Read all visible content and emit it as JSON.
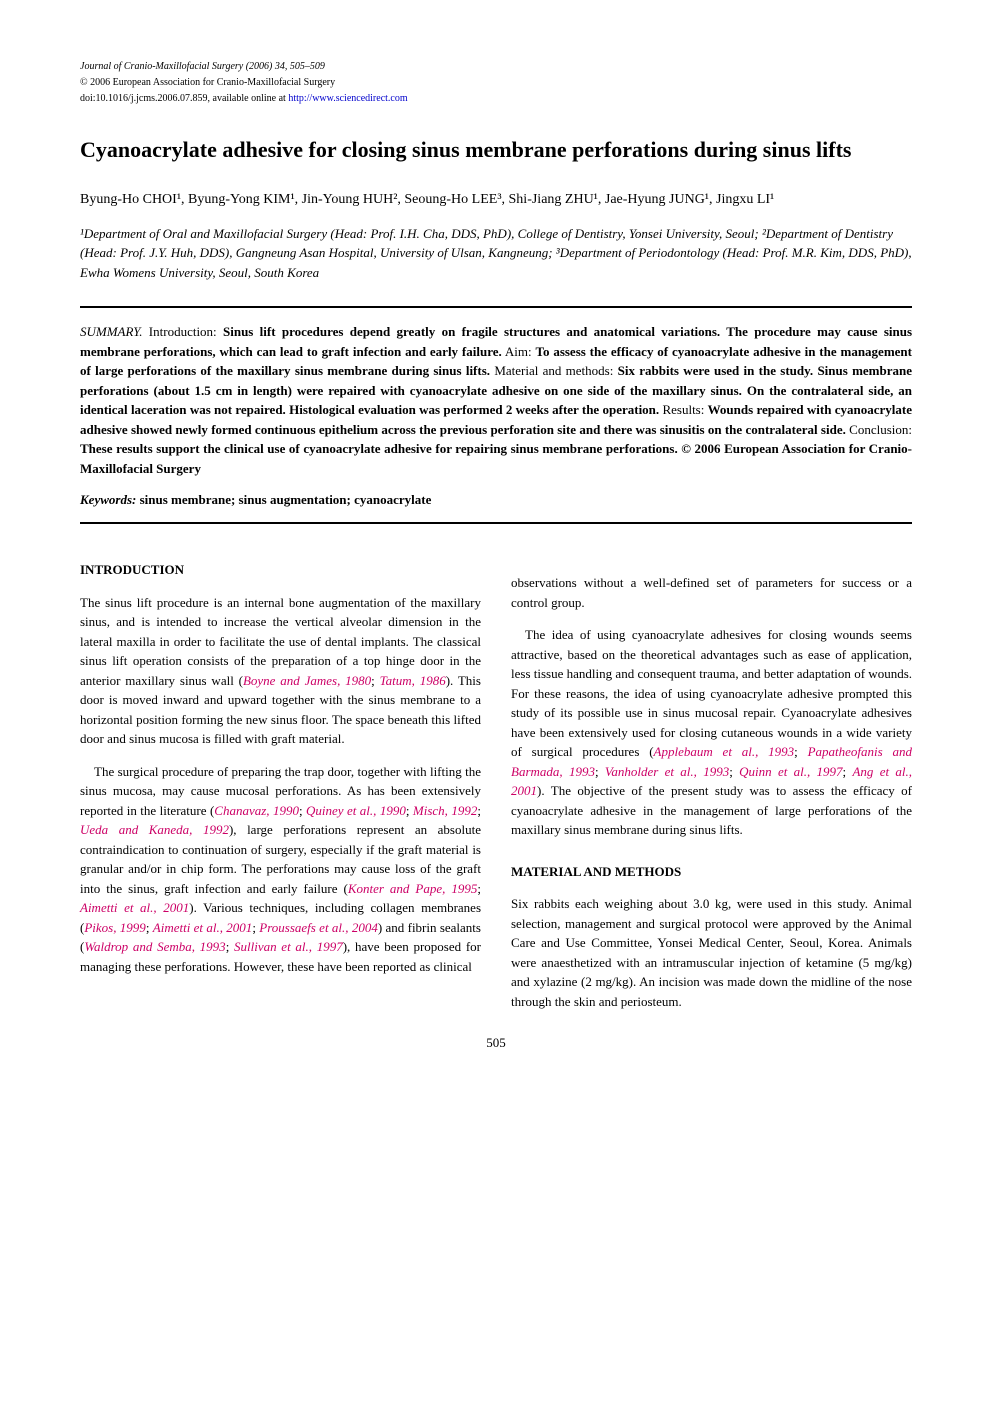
{
  "header": {
    "journal": "Journal of Cranio-Maxillofacial Surgery (2006) 34, 505–509",
    "copyright": "© 2006 European Association for Cranio-Maxillofacial Surgery",
    "doi_prefix": "doi:10.1016/j.jcms.2006.07.859, available online at ",
    "doi_link": "http://www.sciencedirect.com"
  },
  "title": "Cyanoacrylate adhesive for closing sinus membrane perforations during sinus lifts",
  "authors": "Byung-Ho CHOI¹, Byung-Yong KIM¹, Jin-Young HUH², Seoung-Ho LEE³, Shi-Jiang ZHU¹, Jae-Hyung JUNG¹, Jingxu LI¹",
  "affiliations": "¹Department of Oral and Maxillofacial Surgery (Head: Prof. I.H. Cha, DDS, PhD), College of Dentistry, Yonsei University, Seoul; ²Department of Dentistry (Head: Prof. J.Y. Huh, DDS), Gangneung Asan Hospital, University of Ulsan, Kangneung; ³Department of Periodontology (Head: Prof. M.R. Kim, DDS, PhD), Ewha Womens University, Seoul, South Korea",
  "summary": {
    "label": "SUMMARY.",
    "intro_label": "Introduction:",
    "intro_text": "Sinus lift procedures depend greatly on fragile structures and anatomical variations. The procedure may cause sinus membrane perforations, which can lead to graft infection and early failure.",
    "aim_label": "Aim:",
    "aim_text": "To assess the efficacy of cyanoacrylate adhesive in the management of large perforations of the maxillary sinus membrane during sinus lifts.",
    "methods_label": "Material and methods:",
    "methods_text": "Six rabbits were used in the study. Sinus membrane perforations (about 1.5 cm in length) were repaired with cyanoacrylate adhesive on one side of the maxillary sinus. On the contralateral side, an identical laceration was not repaired. Histological evaluation was performed 2 weeks after the operation.",
    "results_label": "Results:",
    "results_text": "Wounds repaired with cyanoacrylate adhesive showed newly formed continuous epithelium across the previous perforation site and there was sinusitis on the contralateral side.",
    "conclusion_label": "Conclusion:",
    "conclusion_text": "These results support the clinical use of cyanoacrylate adhesive for repairing sinus membrane perforations.",
    "copyright_line": "© 2006 European Association for Cranio-Maxillofacial Surgery"
  },
  "keywords": {
    "label": "Keywords:",
    "text": "sinus membrane; sinus augmentation; cyanoacrylate"
  },
  "introduction": {
    "heading": "INTRODUCTION",
    "para1_part1": "The sinus lift procedure is an internal bone augmentation of the maxillary sinus, and is intended to increase the vertical alveolar dimension in the lateral maxilla in order to facilitate the use of dental implants. The classical sinus lift operation consists of the preparation of a top hinge door in the anterior maxillary sinus wall (",
    "para1_ref1": "Boyne and James, 1980",
    "para1_sep1": "; ",
    "para1_ref2": "Tatum, 1986",
    "para1_part2": "). This door is moved inward and upward together with the sinus membrane to a horizontal position forming the new sinus floor. The space beneath this lifted door and sinus mucosa is filled with graft material.",
    "para2_part1": "The surgical procedure of preparing the trap door, together with lifting the sinus mucosa, may cause mucosal perforations. As has been extensively reported in the literature (",
    "para2_ref1": "Chanavaz, 1990",
    "para2_sep1": "; ",
    "para2_ref2": "Quiney et al., 1990",
    "para2_sep2": "; ",
    "para2_ref3": "Misch, 1992",
    "para2_sep3": "; ",
    "para2_ref4": "Ueda and Kaneda, 1992",
    "para2_part2": "), large perforations represent an absolute contraindication to continuation of surgery, especially if the graft material is granular and/or in chip form. The perforations may cause loss of the graft into the sinus, graft infection and early failure (",
    "para2_ref5": "Konter and Pape, 1995",
    "para2_sep4": "; ",
    "para2_ref6": "Aimetti et al., 2001",
    "para2_part3": "). Various techniques, including collagen membranes (",
    "para2_ref7": "Pikos, 1999",
    "para2_sep5": "; ",
    "para2_ref8": "Aimetti et al., 2001",
    "para2_sep6": "; ",
    "para2_ref9": "Proussaefs et al., 2004",
    "para2_part4": ") and fibrin sealants (",
    "para2_ref10": "Waldrop and Semba, 1993",
    "para2_sep7": "; ",
    "para2_ref11": "Sullivan et al., 1997",
    "para2_part5": "), have been proposed for managing these perforations. However, these have been reported as clinical ",
    "para2_cont": "observations without a well-defined set of parameters for success or a control group.",
    "para3_part1": "The idea of using cyanoacrylate adhesives for closing wounds seems attractive, based on the theoretical advantages such as ease of application, less tissue handling and consequent trauma, and better adaptation of wounds. For these reasons, the idea of using cyanoacrylate adhesive prompted this study of its possible use in sinus mucosal repair. Cyanoacrylate adhesives have been extensively used for closing cutaneous wounds in a wide variety of surgical procedures (",
    "para3_ref1": "Applebaum et al., 1993",
    "para3_sep1": "; ",
    "para3_ref2": "Papatheofanis and Barmada, 1993",
    "para3_sep2": "; ",
    "para3_ref3": "Vanholder et al., 1993",
    "para3_sep3": "; ",
    "para3_ref4": "Quinn et al., 1997",
    "para3_sep4": "; ",
    "para3_ref5": "Ang et al., 2001",
    "para3_part2": "). The objective of the present study was to assess the efficacy of cyanoacrylate adhesive in the management of large perforations of the maxillary sinus membrane during sinus lifts."
  },
  "methods": {
    "heading": "MATERIAL AND METHODS",
    "para1": "Six rabbits each weighing about 3.0 kg, were used in this study. Animal selection, management and surgical protocol were approved by the Animal Care and Use Committee, Yonsei Medical Center, Seoul, Korea. Animals were anaesthetized with an intramuscular injection of ketamine (5 mg/kg) and xylazine (2 mg/kg). An incision was made down the midline of the nose through the skin and periosteum."
  },
  "page_number": "505"
}
